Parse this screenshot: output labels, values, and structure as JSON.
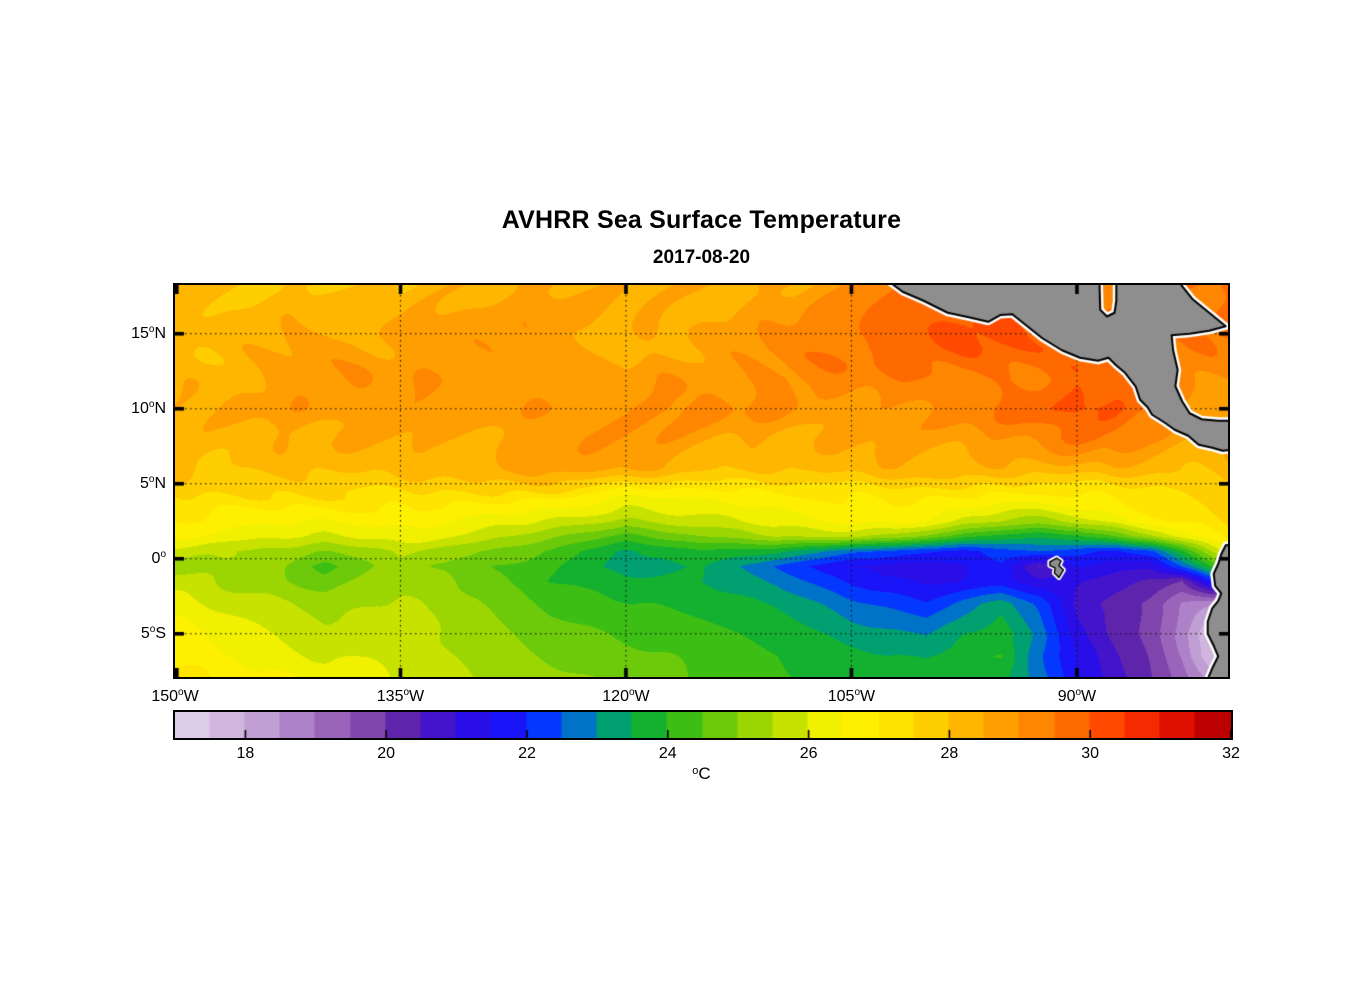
{
  "chart_data": {
    "type": "heatmap",
    "title": "AVHRR Sea Surface Temperature",
    "date": "2017-08-20",
    "unit": "°C",
    "lon_range": [
      -150,
      -79.95
    ],
    "lat_range": [
      -7.88,
      18.25
    ],
    "grid_lons": [
      -150,
      -145,
      -140,
      -135,
      -130,
      -125,
      -120,
      -115,
      -110,
      -105,
      -100,
      -97.5,
      -95,
      -92.5,
      -90,
      -87.5,
      -85,
      -83,
      -81,
      -80
    ],
    "grid_lats": [
      18.25,
      16,
      14,
      12,
      10,
      8,
      6,
      4,
      2.5,
      1.5,
      0.5,
      -0.5,
      -1.5,
      -3,
      -5,
      -6.5,
      -8
    ],
    "sst": [
      [
        27.8,
        27.9,
        28.2,
        27.9,
        28.3,
        28.6,
        28.4,
        28.6,
        28.8,
        29.0,
        29.5,
        29.7,
        29.9,
        29.8,
        29.6,
        29.4,
        29.4,
        29.4,
        29.5,
        29.5
      ],
      [
        28.0,
        28.2,
        28.4,
        28.2,
        28.5,
        28.6,
        28.5,
        28.7,
        28.9,
        29.3,
        29.8,
        30.0,
        30.1,
        29.9,
        29.7,
        29.5,
        29.4,
        29.3,
        29.4,
        29.4
      ],
      [
        28.2,
        28.4,
        28.5,
        28.4,
        28.6,
        28.7,
        28.6,
        28.8,
        29.0,
        29.5,
        30.1,
        30.3,
        30.1,
        29.9,
        29.6,
        29.5,
        29.3,
        29.2,
        29.3,
        29.3
      ],
      [
        28.4,
        28.6,
        28.6,
        28.5,
        28.8,
        28.9,
        28.7,
        28.9,
        29.1,
        29.3,
        29.6,
        29.8,
        29.7,
        29.5,
        29.7,
        29.7,
        29.4,
        29.0,
        28.9,
        28.9
      ],
      [
        28.4,
        28.5,
        28.6,
        28.6,
        28.8,
        28.9,
        28.8,
        28.9,
        29.0,
        29.1,
        29.2,
        29.3,
        29.5,
        29.8,
        30.1,
        29.9,
        29.2,
        28.8,
        28.7,
        28.7
      ],
      [
        28.2,
        28.3,
        28.4,
        28.5,
        28.6,
        28.7,
        28.6,
        28.6,
        28.7,
        28.8,
        28.8,
        28.9,
        29.0,
        29.2,
        29.4,
        29.2,
        28.9,
        28.7,
        28.8,
        28.8
      ],
      [
        27.9,
        28.0,
        28.1,
        28.2,
        28.3,
        28.4,
        28.2,
        28.1,
        28.2,
        28.3,
        28.4,
        28.4,
        28.3,
        28.2,
        28.3,
        28.4,
        28.3,
        28.2,
        28.3,
        28.4
      ],
      [
        27.5,
        27.6,
        27.6,
        27.5,
        27.2,
        26.8,
        26.3,
        26.6,
        26.9,
        27.0,
        27.1,
        27.0,
        26.9,
        26.8,
        27.0,
        27.3,
        27.5,
        27.6,
        27.8,
        27.9
      ],
      [
        27.0,
        26.9,
        26.6,
        26.6,
        26.3,
        25.9,
        25.3,
        25.9,
        26.3,
        26.5,
        26.4,
        26.0,
        25.6,
        25.4,
        25.8,
        26.3,
        26.8,
        27.1,
        27.4,
        27.5
      ],
      [
        26.6,
        26.4,
        26.0,
        26.2,
        25.8,
        25.1,
        24.3,
        25.0,
        25.5,
        25.6,
        24.9,
        24.3,
        23.9,
        23.7,
        24.0,
        24.6,
        25.4,
        26.2,
        26.9,
        27.1
      ],
      [
        25.8,
        25.6,
        25.0,
        25.5,
        25.0,
        24.4,
        23.4,
        23.9,
        23.6,
        22.6,
        22.1,
        21.9,
        22.3,
        22.6,
        22.3,
        21.9,
        22.4,
        23.9,
        25.6,
        26.2
      ],
      [
        25.3,
        25.6,
        24.4,
        25.2,
        24.6,
        24.2,
        23.2,
        23.5,
        22.4,
        21.4,
        21.2,
        21.5,
        21.9,
        20.5,
        21.6,
        21.2,
        21.1,
        22.5,
        24.0,
        24.4
      ],
      [
        26.0,
        25.4,
        24.7,
        25.4,
        24.9,
        24.1,
        23.6,
        23.5,
        22.9,
        21.8,
        21.4,
        21.6,
        21.8,
        21.2,
        21.0,
        20.7,
        20.3,
        20.0,
        22.0,
        22.5
      ],
      [
        26.3,
        25.8,
        25.2,
        25.6,
        25.2,
        24.4,
        24.0,
        23.8,
        23.4,
        22.6,
        22.1,
        22.8,
        23.3,
        22.4,
        20.8,
        20.3,
        19.8,
        19.0,
        18.6,
        18.0
      ],
      [
        26.6,
        26.2,
        25.6,
        25.8,
        25.5,
        24.8,
        24.4,
        24.1,
        23.9,
        23.3,
        23.0,
        23.5,
        23.8,
        22.8,
        21.2,
        20.4,
        19.8,
        18.8,
        17.4,
        17.2
      ],
      [
        26.8,
        26.4,
        26.0,
        25.9,
        25.6,
        25.0,
        24.6,
        24.3,
        24.1,
        23.6,
        23.4,
        23.8,
        24.0,
        22.6,
        21.4,
        20.6,
        19.9,
        19.0,
        17.6,
        17.3
      ],
      [
        27.0,
        26.7,
        26.4,
        26.1,
        25.7,
        25.2,
        24.7,
        24.4,
        24.2,
        23.8,
        23.8,
        24.0,
        23.6,
        22.8,
        21.6,
        20.8,
        20.0,
        19.3,
        18.4,
        18.0
      ]
    ],
    "gridlines": {
      "lats": [
        15,
        10,
        5,
        0,
        -5
      ],
      "lons": [
        -135,
        -120,
        -105,
        -90
      ]
    },
    "colorbar": {
      "min": 17,
      "max": 32,
      "band_step": 0.5,
      "tick_values": [
        18,
        20,
        22,
        24,
        26,
        28,
        30,
        32
      ],
      "unit_sup": "o",
      "unit_letter": "C",
      "colors": [
        "#DCCCE8",
        "#D0B6DE",
        "#C19ED4",
        "#AE82C8",
        "#9A64BA",
        "#8045AC",
        "#5E24AC",
        "#4414CC",
        "#2A0EE8",
        "#1A14F8",
        "#0438FF",
        "#0072C8",
        "#00A070",
        "#14B030",
        "#3CBE14",
        "#6CCA0A",
        "#9CD602",
        "#C8E200",
        "#F0F000",
        "#FFF000",
        "#FFE400",
        "#FFCE00",
        "#FFB600",
        "#FF9E00",
        "#FF8600",
        "#FF6A00",
        "#FF4A00",
        "#F62A00",
        "#E01000",
        "#BC0000"
      ]
    },
    "land_color": "#8E8E8E",
    "coast_gap_color": "#FFFFFF",
    "land": [
      {
        "name": "central-america",
        "fill": [
          [
            -102.8,
            18.7
          ],
          [
            -101.6,
            17.8
          ],
          [
            -100.2,
            17.2
          ],
          [
            -98.6,
            16.4
          ],
          [
            -97.2,
            16.1
          ],
          [
            -95.9,
            15.8
          ],
          [
            -95.1,
            16.25
          ],
          [
            -94.3,
            16.3
          ],
          [
            -93.3,
            15.5
          ],
          [
            -92.3,
            14.7
          ],
          [
            -91.0,
            13.9
          ],
          [
            -89.8,
            13.4
          ],
          [
            -88.6,
            13.2
          ],
          [
            -87.9,
            13.4
          ],
          [
            -87.4,
            12.9
          ],
          [
            -86.8,
            12.4
          ],
          [
            -86.1,
            11.5
          ],
          [
            -85.8,
            10.6
          ],
          [
            -85.3,
            10.1
          ],
          [
            -85.0,
            9.6
          ],
          [
            -84.2,
            9.1
          ],
          [
            -83.5,
            8.6
          ],
          [
            -82.6,
            8.2
          ],
          [
            -81.9,
            7.6
          ],
          [
            -81.0,
            7.4
          ],
          [
            -80.3,
            7.2
          ],
          [
            -79.4,
            7.3
          ],
          [
            -79.4,
            9.2
          ],
          [
            -80.6,
            9.2
          ],
          [
            -81.7,
            9.3
          ],
          [
            -82.5,
            9.7
          ],
          [
            -83.0,
            10.5
          ],
          [
            -83.45,
            11.5
          ],
          [
            -83.3,
            12.6
          ],
          [
            -83.6,
            13.9
          ],
          [
            -83.7,
            14.9
          ],
          [
            -82.5,
            15.0
          ],
          [
            -81.2,
            15.2
          ],
          [
            -80.1,
            15.5
          ],
          [
            -81.2,
            16.4
          ],
          [
            -82.3,
            17.3
          ],
          [
            -83.1,
            18.3
          ],
          [
            -83.15,
            19.0
          ],
          [
            -87.42,
            19.0
          ],
          [
            -87.38,
            17.2
          ],
          [
            -87.5,
            16.4
          ],
          [
            -88.0,
            16.15
          ],
          [
            -88.45,
            16.6
          ],
          [
            -88.55,
            19.0
          ]
        ],
        "coasts": [
          [
            [
              -102.8,
              18.7
            ],
            [
              -101.6,
              17.8
            ],
            [
              -100.2,
              17.2
            ],
            [
              -98.6,
              16.4
            ],
            [
              -97.2,
              16.1
            ],
            [
              -95.9,
              15.8
            ],
            [
              -95.1,
              16.25
            ],
            [
              -94.3,
              16.3
            ],
            [
              -93.3,
              15.5
            ],
            [
              -92.3,
              14.7
            ],
            [
              -91.0,
              13.9
            ],
            [
              -89.8,
              13.4
            ],
            [
              -88.6,
              13.2
            ],
            [
              -87.9,
              13.4
            ],
            [
              -87.4,
              12.9
            ],
            [
              -86.8,
              12.4
            ],
            [
              -86.1,
              11.5
            ],
            [
              -85.8,
              10.6
            ],
            [
              -85.3,
              10.1
            ],
            [
              -85.0,
              9.6
            ],
            [
              -84.2,
              9.1
            ],
            [
              -83.5,
              8.6
            ],
            [
              -82.6,
              8.2
            ],
            [
              -81.9,
              7.6
            ],
            [
              -81.0,
              7.4
            ],
            [
              -80.3,
              7.2
            ],
            [
              -79.4,
              7.3
            ]
          ],
          [
            [
              -79.4,
              9.2
            ],
            [
              -80.6,
              9.2
            ],
            [
              -81.7,
              9.3
            ],
            [
              -82.5,
              9.7
            ],
            [
              -83.0,
              10.5
            ],
            [
              -83.45,
              11.5
            ],
            [
              -83.3,
              12.6
            ],
            [
              -83.6,
              13.9
            ],
            [
              -83.7,
              14.9
            ],
            [
              -82.5,
              15.0
            ],
            [
              -81.2,
              15.2
            ],
            [
              -80.1,
              15.5
            ],
            [
              -81.2,
              16.4
            ],
            [
              -82.3,
              17.3
            ],
            [
              -83.1,
              18.3
            ]
          ],
          [
            [
              -87.38,
              18.4
            ],
            [
              -87.38,
              17.2
            ],
            [
              -87.5,
              16.4
            ],
            [
              -88.0,
              16.15
            ],
            [
              -88.45,
              16.6
            ],
            [
              -88.5,
              18.4
            ]
          ]
        ]
      },
      {
        "name": "south-america",
        "fill": [
          [
            -79.5,
            1.0
          ],
          [
            -80.1,
            0.9
          ],
          [
            -80.4,
            0.3
          ],
          [
            -80.6,
            -0.35
          ],
          [
            -80.9,
            -1.0
          ],
          [
            -80.8,
            -1.8
          ],
          [
            -80.4,
            -2.3
          ],
          [
            -80.6,
            -2.8
          ],
          [
            -81.0,
            -3.3
          ],
          [
            -81.3,
            -4.2
          ],
          [
            -81.3,
            -5.0
          ],
          [
            -80.9,
            -5.8
          ],
          [
            -80.6,
            -6.5
          ],
          [
            -81.0,
            -7.3
          ],
          [
            -81.5,
            -8.5
          ],
          [
            -79.5,
            -8.5
          ]
        ],
        "coasts": [
          [
            [
              -79.5,
              1.0
            ],
            [
              -80.1,
              0.9
            ],
            [
              -80.4,
              0.3
            ],
            [
              -80.6,
              -0.35
            ],
            [
              -80.9,
              -1.0
            ],
            [
              -80.8,
              -1.8
            ],
            [
              -80.4,
              -2.3
            ],
            [
              -80.6,
              -2.8
            ],
            [
              -81.0,
              -3.3
            ],
            [
              -81.3,
              -4.2
            ],
            [
              -81.3,
              -5.0
            ],
            [
              -80.9,
              -5.8
            ],
            [
              -80.6,
              -6.5
            ],
            [
              -81.0,
              -7.3
            ],
            [
              -81.5,
              -8.5
            ]
          ]
        ]
      },
      {
        "name": "galapagos-island",
        "fill": [
          [
            -91.8,
            -0.2
          ],
          [
            -91.35,
            0.05
          ],
          [
            -91.05,
            -0.15
          ],
          [
            -91.2,
            -0.45
          ],
          [
            -90.9,
            -0.75
          ],
          [
            -91.2,
            -1.25
          ],
          [
            -91.5,
            -0.95
          ],
          [
            -91.45,
            -0.6
          ],
          [
            -91.8,
            -0.45
          ]
        ],
        "coasts": [
          [
            [
              -91.8,
              -0.2
            ],
            [
              -91.35,
              0.05
            ],
            [
              -91.05,
              -0.15
            ],
            [
              -91.2,
              -0.45
            ],
            [
              -90.9,
              -0.75
            ],
            [
              -91.2,
              -1.25
            ],
            [
              -91.5,
              -0.95
            ],
            [
              -91.45,
              -0.6
            ],
            [
              -91.8,
              -0.45
            ],
            [
              -91.8,
              -0.2
            ]
          ]
        ]
      }
    ]
  },
  "axes": {
    "x_ticks": [
      {
        "lon": -150,
        "num": "150",
        "sup": "o",
        "dir": "W"
      },
      {
        "lon": -135,
        "num": "135",
        "sup": "o",
        "dir": "W"
      },
      {
        "lon": -120,
        "num": "120",
        "sup": "o",
        "dir": "W"
      },
      {
        "lon": -105,
        "num": "105",
        "sup": "o",
        "dir": "W"
      },
      {
        "lon": -90,
        "num": "90",
        "sup": "o",
        "dir": "W"
      }
    ],
    "y_ticks": [
      {
        "lat": 15,
        "num": "15",
        "sup": "o",
        "dir": "N"
      },
      {
        "lat": 10,
        "num": "10",
        "sup": "o",
        "dir": "N"
      },
      {
        "lat": 5,
        "num": "5",
        "sup": "o",
        "dir": "N"
      },
      {
        "lat": 0,
        "num": "0",
        "sup": "o",
        "dir": ""
      },
      {
        "lat": -5,
        "num": "5",
        "sup": "o",
        "dir": "S"
      }
    ]
  }
}
